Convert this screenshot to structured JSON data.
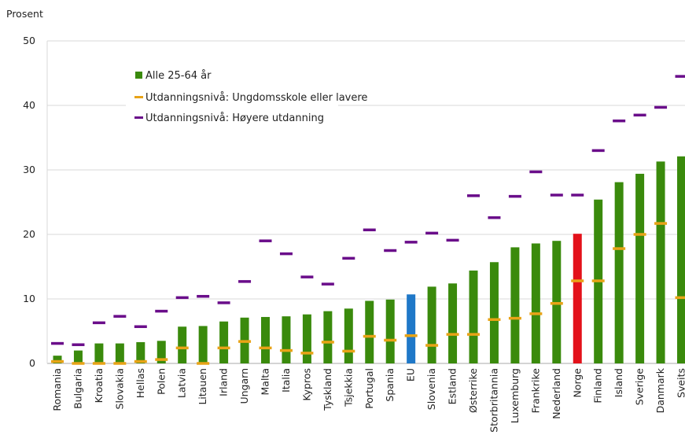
{
  "chart_data": {
    "type": "bar",
    "ylabel": "Prosent",
    "ylim": [
      0,
      50
    ],
    "yticks": [
      0,
      10,
      20,
      30,
      40,
      50
    ],
    "grid": true,
    "legend_position": "top-left",
    "categories": [
      "Romania",
      "Bulgaria",
      "Kroatia",
      "Slovakia",
      "Hellas",
      "Polen",
      "Latvia",
      "Litauen",
      "Irland",
      "Ungarn",
      "Malta",
      "Italia",
      "Kypros",
      "Tyskland",
      "Tsjekkia",
      "Portugal",
      "Spania",
      "EU",
      "Slovenia",
      "Estland",
      "Østerrike",
      "Storbritannia",
      "Luxemburg",
      "Frankrike",
      "Nederland",
      "Norge",
      "Finland",
      "Island",
      "Sverige",
      "Danmark",
      "Sveits"
    ],
    "series": [
      {
        "name": "Alle 25-64 år",
        "kind": "bar",
        "color": "#3a8a0c",
        "values": [
          1.2,
          2.0,
          3.1,
          3.1,
          3.3,
          3.5,
          5.7,
          5.8,
          6.5,
          7.1,
          7.2,
          7.3,
          7.6,
          8.1,
          8.5,
          9.7,
          9.9,
          10.7,
          11.9,
          12.4,
          14.4,
          15.7,
          18.0,
          18.6,
          19.0,
          20.1,
          25.4,
          28.1,
          29.4,
          31.3,
          32.1
        ]
      },
      {
        "name": "Utdanningsnivå: Ungdomsskole eller lavere",
        "kind": "marker",
        "color": "#e8a317",
        "values": [
          0.3,
          0.0,
          0.0,
          0.0,
          0.3,
          0.6,
          2.4,
          0.0,
          2.4,
          3.4,
          2.4,
          2.0,
          1.6,
          3.3,
          1.9,
          4.2,
          3.6,
          4.3,
          2.8,
          4.5,
          4.5,
          6.8,
          7.0,
          7.7,
          9.3,
          12.8,
          12.8,
          17.8,
          20.0,
          21.7,
          10.2
        ]
      },
      {
        "name": "Utdanningsnivå: Høyere utdanning",
        "kind": "marker",
        "color": "#6a0d8a",
        "values": [
          3.1,
          2.9,
          6.3,
          7.3,
          5.7,
          8.1,
          10.2,
          10.4,
          9.4,
          12.7,
          19.0,
          17.0,
          13.4,
          12.3,
          16.3,
          20.7,
          17.5,
          18.8,
          20.2,
          19.1,
          26.0,
          22.6,
          25.9,
          29.7,
          26.1,
          26.1,
          33.0,
          37.6,
          38.5,
          39.7,
          44.5
        ]
      }
    ],
    "highlight": {
      "EU": "#1f78c8",
      "Norge": "#e3111a"
    }
  }
}
